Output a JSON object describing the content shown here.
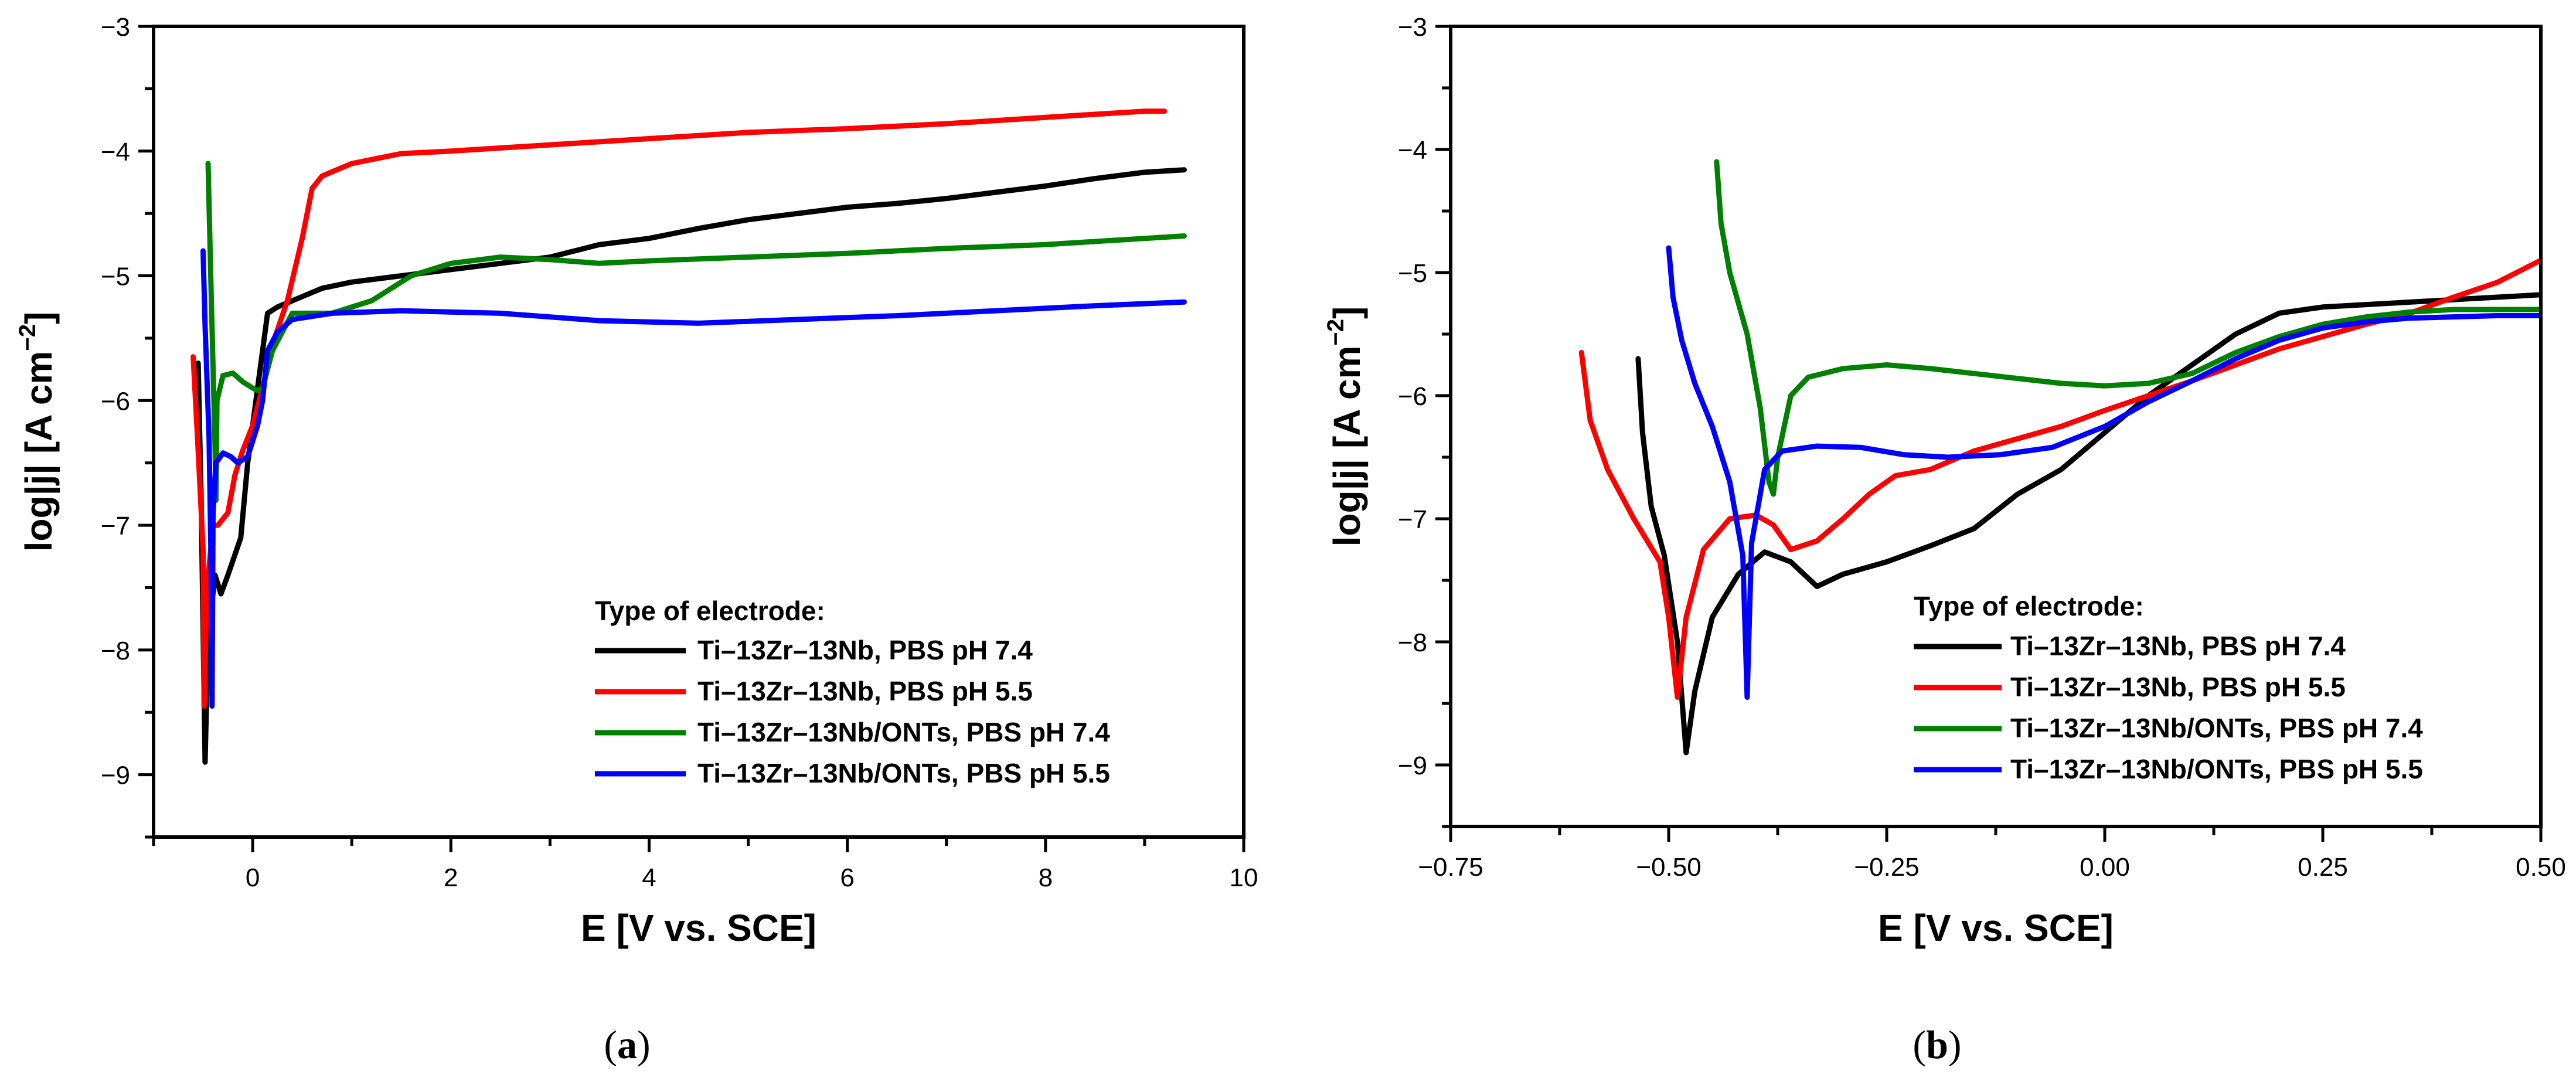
{
  "chart_data": [
    {
      "type": "line",
      "panel": "a",
      "caption_letter": "a",
      "xlabel": "E [V vs. SCE]",
      "ylabel": "log|j| [A cm",
      "ylabel_exponent": "−2",
      "ylabel_close": "]",
      "xlim": [
        -1,
        10
      ],
      "ylim": [
        -9.5,
        -3
      ],
      "xticks": [
        0,
        2,
        4,
        6,
        8,
        10
      ],
      "xtick_labels": [
        "0",
        "2",
        "4",
        "6",
        "8",
        "10"
      ],
      "yticks": [
        -9,
        -8,
        -7,
        -6,
        -5,
        -4,
        -3
      ],
      "ytick_labels": [
        "−9",
        "−8",
        "−7",
        "−6",
        "−5",
        "−4",
        "−3"
      ],
      "legend": {
        "title": "Type of electrode:",
        "placement": "bottom-right"
      },
      "series": [
        {
          "name": "Ti–13Zr–13Nb, PBS pH 7.4",
          "color": "#000000",
          "points": [
            [
              -0.55,
              -5.7
            ],
            [
              -0.52,
              -6.8
            ],
            [
              -0.48,
              -8.9
            ],
            [
              -0.45,
              -7.9
            ],
            [
              -0.38,
              -7.4
            ],
            [
              -0.32,
              -7.55
            ],
            [
              -0.25,
              -7.4
            ],
            [
              -0.12,
              -7.1
            ],
            [
              -0.05,
              -6.5
            ],
            [
              0.05,
              -5.9
            ],
            [
              0.15,
              -5.3
            ],
            [
              0.25,
              -5.25
            ],
            [
              0.4,
              -5.2
            ],
            [
              0.7,
              -5.1
            ],
            [
              1.0,
              -5.05
            ],
            [
              1.5,
              -5.0
            ],
            [
              2.0,
              -4.95
            ],
            [
              2.5,
              -4.9
            ],
            [
              3.0,
              -4.85
            ],
            [
              3.5,
              -4.75
            ],
            [
              4.0,
              -4.7
            ],
            [
              4.5,
              -4.62
            ],
            [
              5.0,
              -4.55
            ],
            [
              5.5,
              -4.5
            ],
            [
              6.0,
              -4.45
            ],
            [
              6.5,
              -4.42
            ],
            [
              7.0,
              -4.38
            ],
            [
              7.5,
              -4.33
            ],
            [
              8.0,
              -4.28
            ],
            [
              8.5,
              -4.22
            ],
            [
              9.0,
              -4.17
            ],
            [
              9.4,
              -4.15
            ]
          ]
        },
        {
          "name": "Ti–13Zr–13Nb, PBS pH 5.5",
          "color": "#ff0000",
          "points": [
            [
              -0.6,
              -5.65
            ],
            [
              -0.55,
              -6.4
            ],
            [
              -0.5,
              -7.2
            ],
            [
              -0.49,
              -8.45
            ],
            [
              -0.46,
              -7.5
            ],
            [
              -0.4,
              -7.0
            ],
            [
              -0.35,
              -7.0
            ],
            [
              -0.25,
              -6.9
            ],
            [
              -0.18,
              -6.6
            ],
            [
              -0.1,
              -6.4
            ],
            [
              0.0,
              -6.2
            ],
            [
              0.1,
              -5.9
            ],
            [
              0.2,
              -5.55
            ],
            [
              0.35,
              -5.2
            ],
            [
              0.5,
              -4.7
            ],
            [
              0.6,
              -4.3
            ],
            [
              0.7,
              -4.2
            ],
            [
              1.0,
              -4.1
            ],
            [
              1.5,
              -4.02
            ],
            [
              2.0,
              -4.0
            ],
            [
              3.0,
              -3.95
            ],
            [
              4.0,
              -3.9
            ],
            [
              5.0,
              -3.85
            ],
            [
              6.0,
              -3.82
            ],
            [
              7.0,
              -3.78
            ],
            [
              8.0,
              -3.73
            ],
            [
              9.0,
              -3.68
            ],
            [
              9.2,
              -3.68
            ]
          ]
        },
        {
          "name": "Ti–13Zr–13Nb/ONTs, PBS pH 7.4",
          "color": "#008000",
          "points": [
            [
              -0.45,
              -4.1
            ],
            [
              -0.42,
              -5.1
            ],
            [
              -0.38,
              -6.35
            ],
            [
              -0.37,
              -6.8
            ],
            [
              -0.36,
              -6.0
            ],
            [
              -0.3,
              -5.8
            ],
            [
              -0.2,
              -5.78
            ],
            [
              -0.1,
              -5.85
            ],
            [
              0.0,
              -5.9
            ],
            [
              0.05,
              -5.92
            ],
            [
              0.1,
              -5.9
            ],
            [
              0.2,
              -5.6
            ],
            [
              0.4,
              -5.3
            ],
            [
              0.8,
              -5.3
            ],
            [
              1.2,
              -5.2
            ],
            [
              1.6,
              -5.0
            ],
            [
              2.0,
              -4.9
            ],
            [
              2.5,
              -4.85
            ],
            [
              3.0,
              -4.87
            ],
            [
              3.5,
              -4.9
            ],
            [
              4.0,
              -4.88
            ],
            [
              5.0,
              -4.85
            ],
            [
              6.0,
              -4.82
            ],
            [
              7.0,
              -4.78
            ],
            [
              8.0,
              -4.75
            ],
            [
              9.0,
              -4.7
            ],
            [
              9.4,
              -4.68
            ]
          ]
        },
        {
          "name": "Ti–13Zr–13Nb/ONTs, PBS pH 5.5",
          "color": "#0000ff",
          "points": [
            [
              -0.5,
              -4.8
            ],
            [
              -0.48,
              -5.4
            ],
            [
              -0.46,
              -5.85
            ],
            [
              -0.44,
              -6.3
            ],
            [
              -0.42,
              -7.3
            ],
            [
              -0.41,
              -8.45
            ],
            [
              -0.4,
              -6.9
            ],
            [
              -0.37,
              -6.5
            ],
            [
              -0.3,
              -6.42
            ],
            [
              -0.22,
              -6.45
            ],
            [
              -0.15,
              -6.5
            ],
            [
              -0.05,
              -6.45
            ],
            [
              0.05,
              -6.2
            ],
            [
              0.1,
              -6.0
            ],
            [
              0.15,
              -5.6
            ],
            [
              0.25,
              -5.45
            ],
            [
              0.4,
              -5.35
            ],
            [
              0.8,
              -5.3
            ],
            [
              1.5,
              -5.28
            ],
            [
              2.5,
              -5.3
            ],
            [
              3.5,
              -5.36
            ],
            [
              4.5,
              -5.38
            ],
            [
              5.5,
              -5.35
            ],
            [
              6.5,
              -5.32
            ],
            [
              7.5,
              -5.28
            ],
            [
              8.5,
              -5.24
            ],
            [
              9.4,
              -5.21
            ]
          ]
        }
      ]
    },
    {
      "type": "line",
      "panel": "b",
      "caption_letter": "b",
      "xlabel": "E [V vs. SCE]",
      "ylabel": "log|j| [A cm",
      "ylabel_exponent": "−2",
      "ylabel_close": "]",
      "xlim": [
        -0.75,
        0.5
      ],
      "ylim": [
        -9.5,
        -3
      ],
      "xticks": [
        -0.75,
        -0.5,
        -0.25,
        0.0,
        0.25,
        0.5
      ],
      "xtick_labels": [
        "−0.75",
        "−0.50",
        "−0.25",
        "0.00",
        "0.25",
        "0.50"
      ],
      "yticks": [
        -9,
        -8,
        -7,
        -6,
        -5,
        -4,
        -3
      ],
      "ytick_labels": [
        "−9",
        "−8",
        "−7",
        "−6",
        "−5",
        "−4",
        "−3"
      ],
      "legend": {
        "title": "Type of electrode:",
        "placement": "bottom-right"
      },
      "series": [
        {
          "name": "Ti–13Zr–13Nb, PBS pH 7.4",
          "color": "#000000",
          "points": [
            [
              -0.535,
              -5.7
            ],
            [
              -0.53,
              -6.3
            ],
            [
              -0.52,
              -6.9
            ],
            [
              -0.505,
              -7.3
            ],
            [
              -0.49,
              -8.0
            ],
            [
              -0.48,
              -8.9
            ],
            [
              -0.47,
              -8.4
            ],
            [
              -0.45,
              -7.8
            ],
            [
              -0.42,
              -7.45
            ],
            [
              -0.39,
              -7.27
            ],
            [
              -0.36,
              -7.35
            ],
            [
              -0.33,
              -7.55
            ],
            [
              -0.3,
              -7.45
            ],
            [
              -0.25,
              -7.35
            ],
            [
              -0.2,
              -7.22
            ],
            [
              -0.15,
              -7.08
            ],
            [
              -0.1,
              -6.8
            ],
            [
              -0.05,
              -6.6
            ],
            [
              0.0,
              -6.3
            ],
            [
              0.05,
              -6.0
            ],
            [
              0.1,
              -5.75
            ],
            [
              0.15,
              -5.5
            ],
            [
              0.2,
              -5.33
            ],
            [
              0.25,
              -5.28
            ],
            [
              0.3,
              -5.26
            ],
            [
              0.35,
              -5.24
            ],
            [
              0.4,
              -5.22
            ],
            [
              0.45,
              -5.2
            ],
            [
              0.5,
              -5.18
            ]
          ]
        },
        {
          "name": "Ti–13Zr–13Nb, PBS pH 5.5",
          "color": "#ff0000",
          "points": [
            [
              -0.6,
              -5.65
            ],
            [
              -0.59,
              -6.2
            ],
            [
              -0.57,
              -6.6
            ],
            [
              -0.54,
              -7.0
            ],
            [
              -0.51,
              -7.35
            ],
            [
              -0.5,
              -7.8
            ],
            [
              -0.49,
              -8.45
            ],
            [
              -0.48,
              -7.8
            ],
            [
              -0.46,
              -7.25
            ],
            [
              -0.43,
              -7.0
            ],
            [
              -0.4,
              -6.97
            ],
            [
              -0.38,
              -7.05
            ],
            [
              -0.36,
              -7.25
            ],
            [
              -0.33,
              -7.18
            ],
            [
              -0.3,
              -7.0
            ],
            [
              -0.27,
              -6.8
            ],
            [
              -0.24,
              -6.65
            ],
            [
              -0.2,
              -6.6
            ],
            [
              -0.15,
              -6.45
            ],
            [
              -0.1,
              -6.35
            ],
            [
              -0.05,
              -6.25
            ],
            [
              0.0,
              -6.12
            ],
            [
              0.05,
              -6.0
            ],
            [
              0.1,
              -5.88
            ],
            [
              0.15,
              -5.75
            ],
            [
              0.2,
              -5.62
            ],
            [
              0.25,
              -5.52
            ],
            [
              0.3,
              -5.42
            ],
            [
              0.35,
              -5.33
            ],
            [
              0.4,
              -5.2
            ],
            [
              0.45,
              -5.08
            ],
            [
              0.5,
              -4.9
            ]
          ]
        },
        {
          "name": "Ti–13Zr–13Nb/ONTs, PBS pH 7.4",
          "color": "#008000",
          "points": [
            [
              -0.445,
              -4.1
            ],
            [
              -0.44,
              -4.6
            ],
            [
              -0.43,
              -5.0
            ],
            [
              -0.41,
              -5.5
            ],
            [
              -0.395,
              -6.1
            ],
            [
              -0.385,
              -6.7
            ],
            [
              -0.38,
              -6.8
            ],
            [
              -0.375,
              -6.5
            ],
            [
              -0.36,
              -6.0
            ],
            [
              -0.34,
              -5.85
            ],
            [
              -0.3,
              -5.78
            ],
            [
              -0.25,
              -5.75
            ],
            [
              -0.2,
              -5.78
            ],
            [
              -0.15,
              -5.82
            ],
            [
              -0.1,
              -5.86
            ],
            [
              -0.05,
              -5.9
            ],
            [
              0.0,
              -5.92
            ],
            [
              0.05,
              -5.9
            ],
            [
              0.1,
              -5.82
            ],
            [
              0.15,
              -5.65
            ],
            [
              0.2,
              -5.52
            ],
            [
              0.25,
              -5.42
            ],
            [
              0.3,
              -5.36
            ],
            [
              0.35,
              -5.32
            ],
            [
              0.4,
              -5.3
            ],
            [
              0.45,
              -5.3
            ],
            [
              0.5,
              -5.3
            ]
          ]
        },
        {
          "name": "Ti–13Zr–13Nb/ONTs, PBS pH 5.5",
          "color": "#0000ff",
          "points": [
            [
              -0.5,
              -4.8
            ],
            [
              -0.495,
              -5.2
            ],
            [
              -0.485,
              -5.55
            ],
            [
              -0.47,
              -5.9
            ],
            [
              -0.45,
              -6.25
            ],
            [
              -0.43,
              -6.7
            ],
            [
              -0.415,
              -7.3
            ],
            [
              -0.41,
              -8.45
            ],
            [
              -0.405,
              -7.2
            ],
            [
              -0.39,
              -6.6
            ],
            [
              -0.37,
              -6.45
            ],
            [
              -0.33,
              -6.41
            ],
            [
              -0.28,
              -6.42
            ],
            [
              -0.23,
              -6.48
            ],
            [
              -0.18,
              -6.5
            ],
            [
              -0.12,
              -6.48
            ],
            [
              -0.06,
              -6.42
            ],
            [
              0.0,
              -6.25
            ],
            [
              0.05,
              -6.05
            ],
            [
              0.1,
              -5.88
            ],
            [
              0.15,
              -5.7
            ],
            [
              0.2,
              -5.55
            ],
            [
              0.25,
              -5.45
            ],
            [
              0.3,
              -5.4
            ],
            [
              0.35,
              -5.37
            ],
            [
              0.4,
              -5.36
            ],
            [
              0.45,
              -5.35
            ],
            [
              0.5,
              -5.35
            ]
          ]
        }
      ]
    }
  ]
}
